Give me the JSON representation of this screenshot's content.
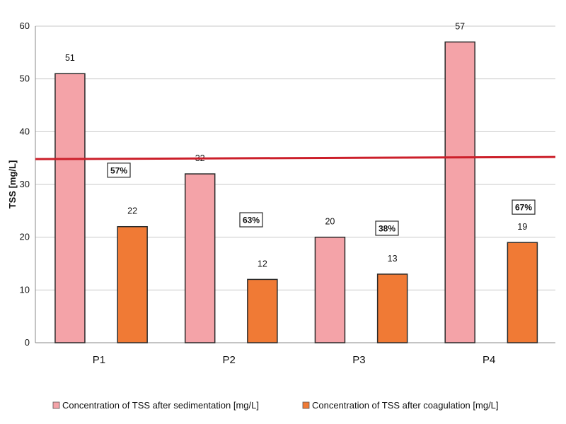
{
  "chart_data": {
    "type": "bar",
    "categories": [
      "P1",
      "P2",
      "P3",
      "P4"
    ],
    "series": [
      {
        "name": "Concentration of TSS after sedimentation [mg/L]",
        "values": [
          51,
          32,
          20,
          57
        ],
        "color": "#f4a3a8"
      },
      {
        "name": "Concentration of TSS after coagulation [mg/L]",
        "values": [
          22,
          12,
          13,
          19
        ],
        "color": "#f07a35"
      }
    ],
    "data_labels": {
      "sedimentation": [
        "51",
        "32",
        "20",
        "57"
      ],
      "coagulation": [
        "22",
        "12",
        "13",
        "19"
      ]
    },
    "reduction_labels": [
      "57%",
      "63%",
      "38%",
      "67%"
    ],
    "threshold": {
      "value": 35,
      "color": "#cc1f2a"
    },
    "ylabel": "TSS [mg/L]",
    "xlabel": "",
    "ylim": [
      0,
      60
    ],
    "yticks": [
      0,
      10,
      20,
      30,
      40,
      50,
      60
    ],
    "grid": true,
    "legend_position": "bottom"
  }
}
